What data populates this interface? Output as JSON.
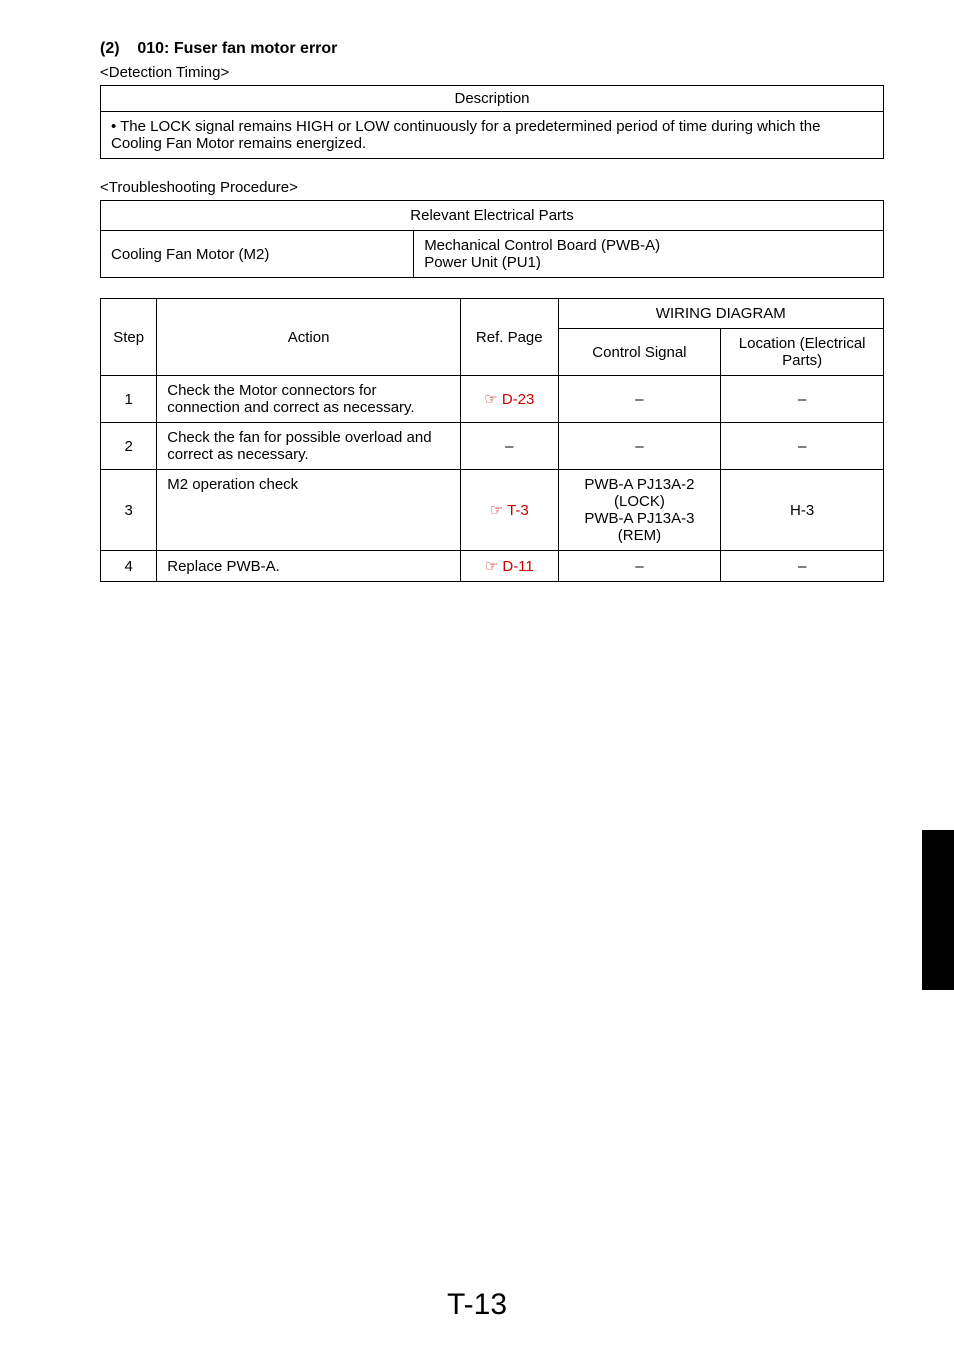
{
  "header": {
    "section_number": "(2)",
    "section_title": "010: Fuser fan motor error",
    "detection_label": "<Detection Timing>"
  },
  "description_table": {
    "header": "Description",
    "body": "• The LOCK signal remains HIGH or LOW continuously for a predetermined period of time during which the Cooling Fan Motor remains energized."
  },
  "troubleshooting_label": "<Troubleshooting Procedure>",
  "relevant_parts": {
    "header": "Relevant Electrical Parts",
    "left": "Cooling Fan Motor (M2)",
    "right_line1": "Mechanical Control Board (PWB-A)",
    "right_line2": "Power Unit (PU1)"
  },
  "wiring_table": {
    "headers": {
      "step": "Step",
      "action": "Action",
      "ref_page": "Ref. Page",
      "wiring_diagram": "WIRING DIAGRAM",
      "control_signal": "Control Signal",
      "location": "Location (Electrical Parts)"
    },
    "rows": [
      {
        "step": "1",
        "action": "Check the Motor connectors for connection and correct as necessary.",
        "ref_prefix": "☞ ",
        "ref": "D-23",
        "ctrl": "–",
        "loc": "–"
      },
      {
        "step": "2",
        "action": "Check the fan for possible overload and correct as necessary.",
        "ref_prefix": "",
        "ref": "–",
        "ctrl": "–",
        "loc": "–"
      },
      {
        "step": "3",
        "action": "M2 operation check",
        "ref_prefix": "☞ ",
        "ref": "T-3",
        "ctrl": "PWB-A PJ13A-2 (LOCK)\nPWB-A PJ13A-3 (REM)",
        "loc": "H-3"
      },
      {
        "step": "4",
        "action": "Replace PWB-A.",
        "ref_prefix": "☞ ",
        "ref": "D-11",
        "ctrl": "–",
        "loc": "–"
      }
    ]
  },
  "page_number": "T-13",
  "colors": {
    "link_color": "#cc0000",
    "text_color": "#000000",
    "bg_color": "#ffffff",
    "tab_color": "#000000"
  }
}
